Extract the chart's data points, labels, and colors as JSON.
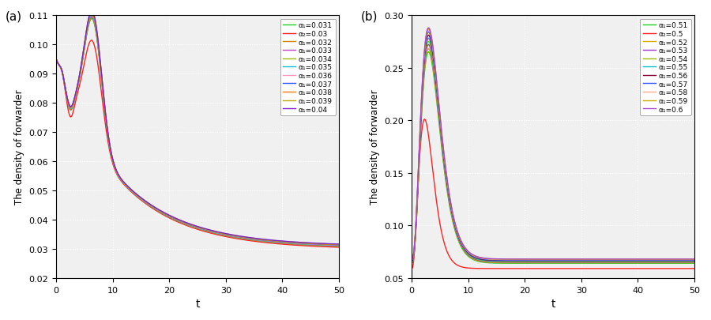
{
  "panel_a": {
    "label": "(a)",
    "xlabel": "t",
    "ylabel": "The density of forwarder",
    "xlim": [
      0,
      50
    ],
    "ylim": [
      0.02,
      0.11
    ],
    "yticks": [
      0.02,
      0.03,
      0.04,
      0.05,
      0.06,
      0.07,
      0.08,
      0.09,
      0.1,
      0.11
    ],
    "xticks": [
      0,
      10,
      20,
      30,
      40,
      50
    ],
    "series": [
      {
        "label": "α₁=0.031",
        "color": "#22CC22",
        "peak": 0.1085,
        "steady": 0.03,
        "dip_depth": 0.006
      },
      {
        "label": "α₂=0.03",
        "color": "#FF2222",
        "peak": 0.101,
        "steady": 0.0298,
        "dip_depth": 0.008
      },
      {
        "label": "α₁=0.032",
        "color": "#CC8800",
        "peak": 0.1088,
        "steady": 0.0301,
        "dip_depth": 0.0059
      },
      {
        "label": "α₁=0.033",
        "color": "#BB44BB",
        "peak": 0.1091,
        "steady": 0.0302,
        "dip_depth": 0.0058
      },
      {
        "label": "α₁=0.034",
        "color": "#99BB00",
        "peak": 0.1094,
        "steady": 0.0303,
        "dip_depth": 0.0057
      },
      {
        "label": "α₁=0.035",
        "color": "#00BBCC",
        "peak": 0.1097,
        "steady": 0.0304,
        "dip_depth": 0.0056
      },
      {
        "label": "α₁=0.036",
        "color": "#FF99BB",
        "peak": 0.11,
        "steady": 0.0305,
        "dip_depth": 0.0055
      },
      {
        "label": "α₁=0.037",
        "color": "#3355FF",
        "peak": 0.1103,
        "steady": 0.0306,
        "dip_depth": 0.0054
      },
      {
        "label": "α₁=0.038",
        "color": "#FF7700",
        "peak": 0.1106,
        "steady": 0.0307,
        "dip_depth": 0.0053
      },
      {
        "label": "α₁=0.039",
        "color": "#BBAA00",
        "peak": 0.1109,
        "steady": 0.0308,
        "dip_depth": 0.0052
      },
      {
        "label": "α₁=0.04",
        "color": "#7722CC",
        "peak": 0.1112,
        "steady": 0.0309,
        "dip_depth": 0.0051
      }
    ]
  },
  "panel_b": {
    "label": "(b)",
    "xlabel": "t",
    "ylabel": "The density of forwarder",
    "xlim": [
      0,
      50
    ],
    "ylim": [
      0.05,
      0.3
    ],
    "yticks": [
      0.05,
      0.1,
      0.15,
      0.2,
      0.25,
      0.3
    ],
    "xticks": [
      0,
      10,
      20,
      30,
      40,
      50
    ],
    "series": [
      {
        "label": "α₁=0.51",
        "color": "#22CC22",
        "peak": 0.265,
        "peak_t": 3.0,
        "steady": 0.064
      },
      {
        "label": "α₂=0.5",
        "color": "#FF2222",
        "peak": 0.201,
        "peak_t": 2.3,
        "steady": 0.059
      },
      {
        "label": "α₁=0.52",
        "color": "#DDAA00",
        "peak": 0.268,
        "peak_t": 3.0,
        "steady": 0.0645
      },
      {
        "label": "α₁=0.53",
        "color": "#9933CC",
        "peak": 0.272,
        "peak_t": 3.0,
        "steady": 0.065
      },
      {
        "label": "α₁=0.54",
        "color": "#99BB00",
        "peak": 0.275,
        "peak_t": 3.0,
        "steady": 0.0655
      },
      {
        "label": "α₁=0.55",
        "color": "#00BBCC",
        "peak": 0.278,
        "peak_t": 3.0,
        "steady": 0.066
      },
      {
        "label": "α₁=0.56",
        "color": "#880033",
        "peak": 0.281,
        "peak_t": 3.0,
        "steady": 0.0665
      },
      {
        "label": "α₁=0.57",
        "color": "#3355FF",
        "peak": 0.284,
        "peak_t": 3.0,
        "steady": 0.067
      },
      {
        "label": "α₁=0.58",
        "color": "#FFAA88",
        "peak": 0.286,
        "peak_t": 3.0,
        "steady": 0.0675
      },
      {
        "label": "α₁=0.59",
        "color": "#CCAA00",
        "peak": 0.287,
        "peak_t": 3.0,
        "steady": 0.0678
      },
      {
        "label": "α₁=0.6",
        "color": "#AA44CC",
        "peak": 0.288,
        "peak_t": 3.0,
        "steady": 0.068
      }
    ]
  },
  "figsize": [
    9.0,
    4.06
  ],
  "dpi": 100,
  "bg_color": "#E8E8E8",
  "grid_color": "#AAAAAA"
}
